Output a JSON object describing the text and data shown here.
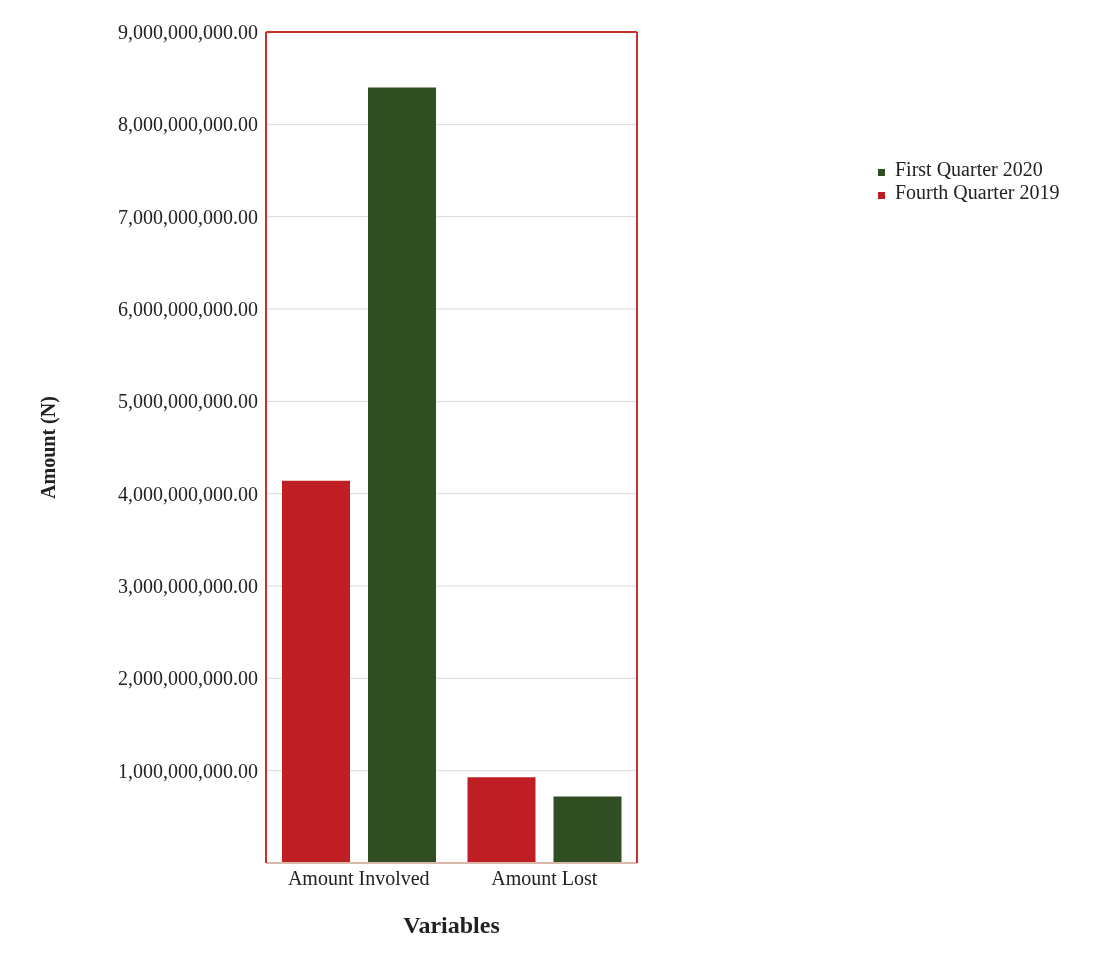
{
  "chart_data": {
    "type": "bar",
    "xlabel": "Variables",
    "ylabel": "Amount (N)",
    "categories": [
      "Amount Involved",
      "Amount Lost"
    ],
    "series": [
      {
        "name": "Fourth Quarter 2019",
        "color": "#be1e24",
        "values": [
          4140000000,
          930000000
        ]
      },
      {
        "name": "First Quarter 2020",
        "color": "#2f4f22",
        "values": [
          8400000000,
          720000000
        ]
      }
    ],
    "ylim": [
      0,
      9000000000
    ],
    "yticks": [
      {
        "value": 1000000000,
        "label": "1,000,000,000.00"
      },
      {
        "value": 2000000000,
        "label": "2,000,000,000.00"
      },
      {
        "value": 3000000000,
        "label": "3,000,000,000.00"
      },
      {
        "value": 4000000000,
        "label": "4,000,000,000.00"
      },
      {
        "value": 5000000000,
        "label": "5,000,000,000.00"
      },
      {
        "value": 6000000000,
        "label": "6,000,000,000.00"
      },
      {
        "value": 7000000000,
        "label": "7,000,000,000.00"
      },
      {
        "value": 8000000000,
        "label": "8,000,000,000.00"
      },
      {
        "value": 9000000000,
        "label": "9,000,000,000.00"
      }
    ],
    "grid": "y",
    "legend": "right"
  }
}
